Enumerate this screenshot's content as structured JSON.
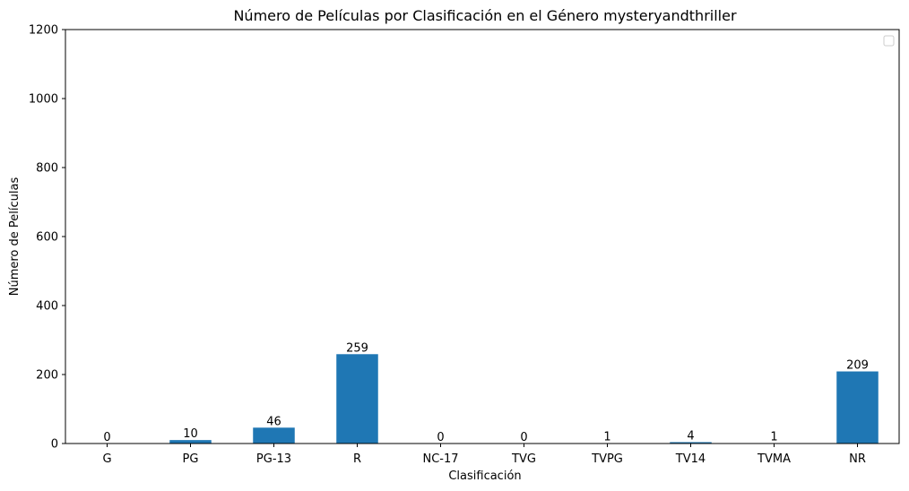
{
  "chart_data": {
    "type": "bar",
    "title": "Número de Películas por Clasificación en el Género mysteryandthriller",
    "xlabel": "Clasificación",
    "ylabel": "Número de Películas",
    "categories": [
      "G",
      "PG",
      "PG-13",
      "R",
      "NC-17",
      "TVG",
      "TVPG",
      "TV14",
      "TVMA",
      "NR"
    ],
    "values": [
      0,
      10,
      46,
      259,
      0,
      0,
      1,
      4,
      1,
      209
    ],
    "ylim": [
      0,
      1200
    ],
    "yticks": [
      0,
      200,
      400,
      600,
      800,
      1000,
      1200
    ],
    "grid": false,
    "legend": "top-right",
    "bar_color": "#1f77b4"
  }
}
